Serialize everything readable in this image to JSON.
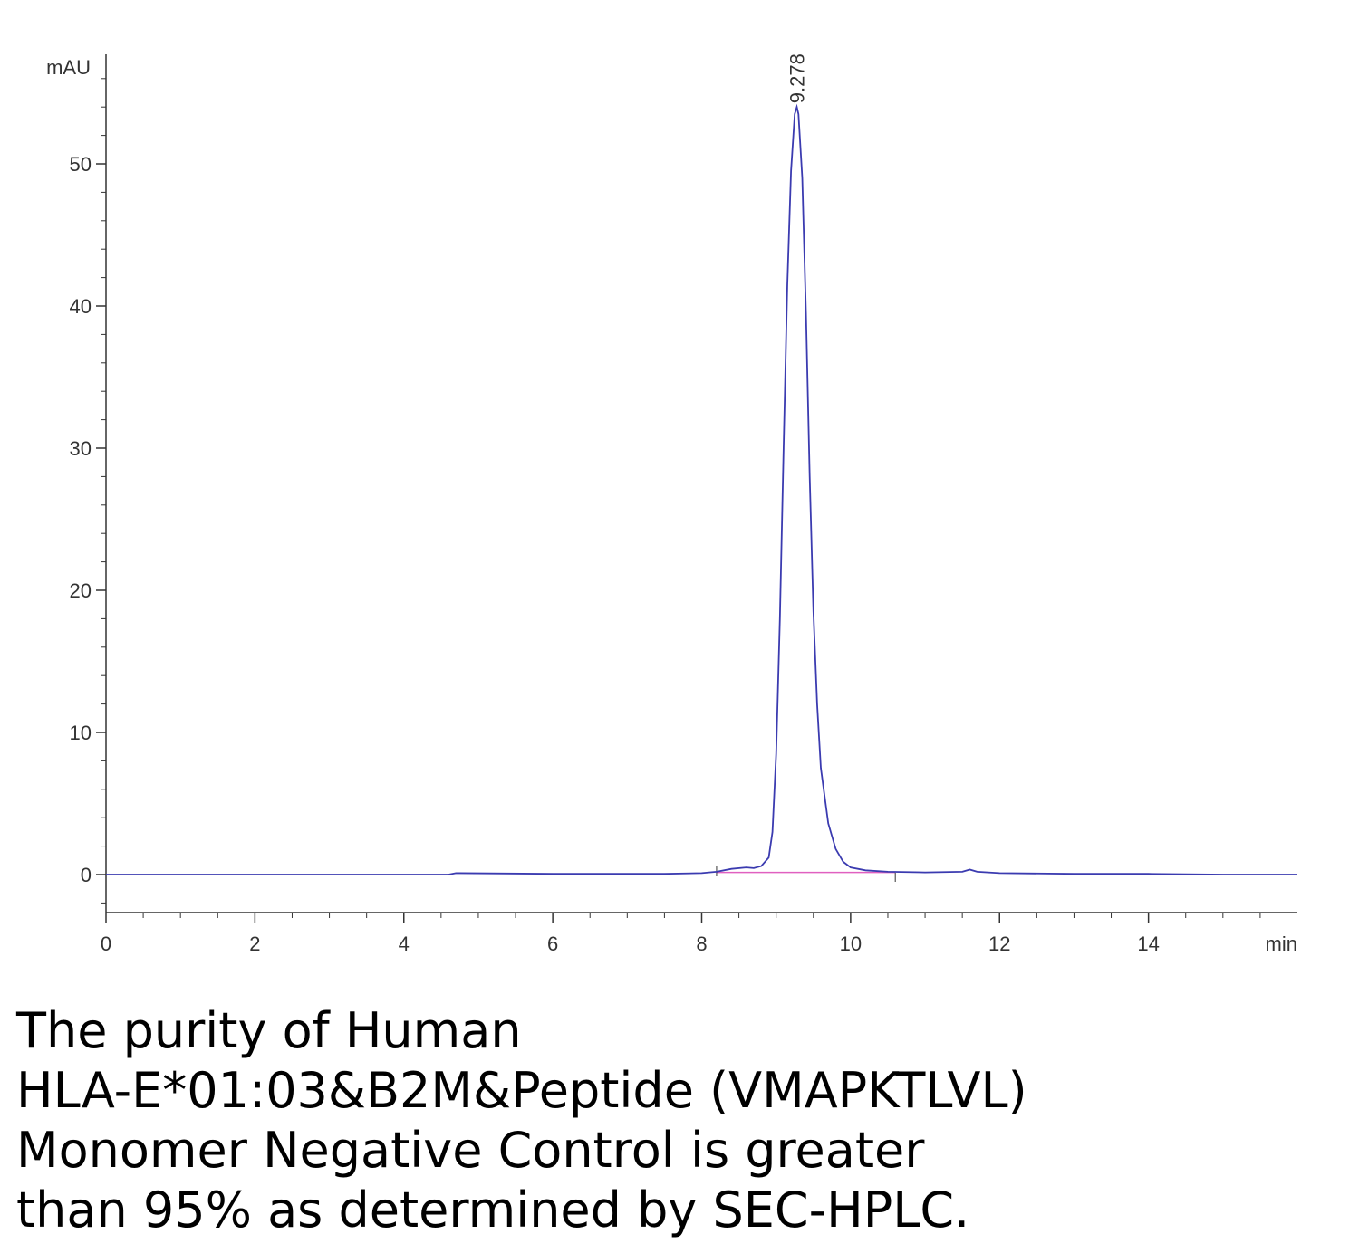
{
  "chart_data": {
    "type": "line",
    "title": "",
    "xlabel": "min",
    "ylabel": "mAU",
    "xlim": [
      0,
      16
    ],
    "ylim": [
      -3,
      57
    ],
    "x_ticks": [
      0,
      2,
      4,
      6,
      8,
      10,
      12,
      14
    ],
    "y_ticks": [
      0,
      10,
      20,
      30,
      40,
      50
    ],
    "grid": false,
    "colors": {
      "trace": "#3b3bb0",
      "baseline": "#e060c0",
      "axis": "#333333"
    },
    "peak_label": "9.278",
    "series": [
      {
        "x": [
          0,
          4.6,
          4.7,
          6.0,
          7.5,
          8.0,
          8.2,
          8.4,
          8.6,
          8.7,
          8.8,
          8.9,
          8.95,
          9.0,
          9.05,
          9.1,
          9.15,
          9.2,
          9.25,
          9.278,
          9.3,
          9.35,
          9.4,
          9.45,
          9.5,
          9.55,
          9.6,
          9.7,
          9.8,
          9.9,
          10.0,
          10.2,
          10.5,
          11.0,
          11.5,
          11.6,
          11.7,
          12.0,
          13.0,
          14.0,
          15.0,
          16.0
        ],
        "values": [
          0,
          0,
          0.1,
          0.05,
          0.05,
          0.1,
          0.2,
          0.4,
          0.5,
          0.45,
          0.6,
          1.2,
          3.0,
          8.5,
          18.0,
          30.0,
          41.5,
          49.5,
          53.5,
          54.0,
          53.5,
          49.0,
          39.5,
          28.0,
          18.5,
          12.0,
          7.5,
          3.6,
          1.8,
          0.9,
          0.5,
          0.3,
          0.2,
          0.15,
          0.2,
          0.35,
          0.2,
          0.1,
          0.05,
          0.05,
          0,
          0
        ]
      }
    ],
    "baseline": {
      "x": [
        8.2,
        10.6
      ],
      "values": [
        0.15,
        0.15
      ]
    }
  },
  "caption": {
    "lines": [
      "The purity of Human",
      "HLA-E*01:03&B2M&Peptide (VMAPKTLVL)",
      "Monomer Negative Control is greater",
      "than 95% as determined by SEC-HPLC."
    ]
  }
}
